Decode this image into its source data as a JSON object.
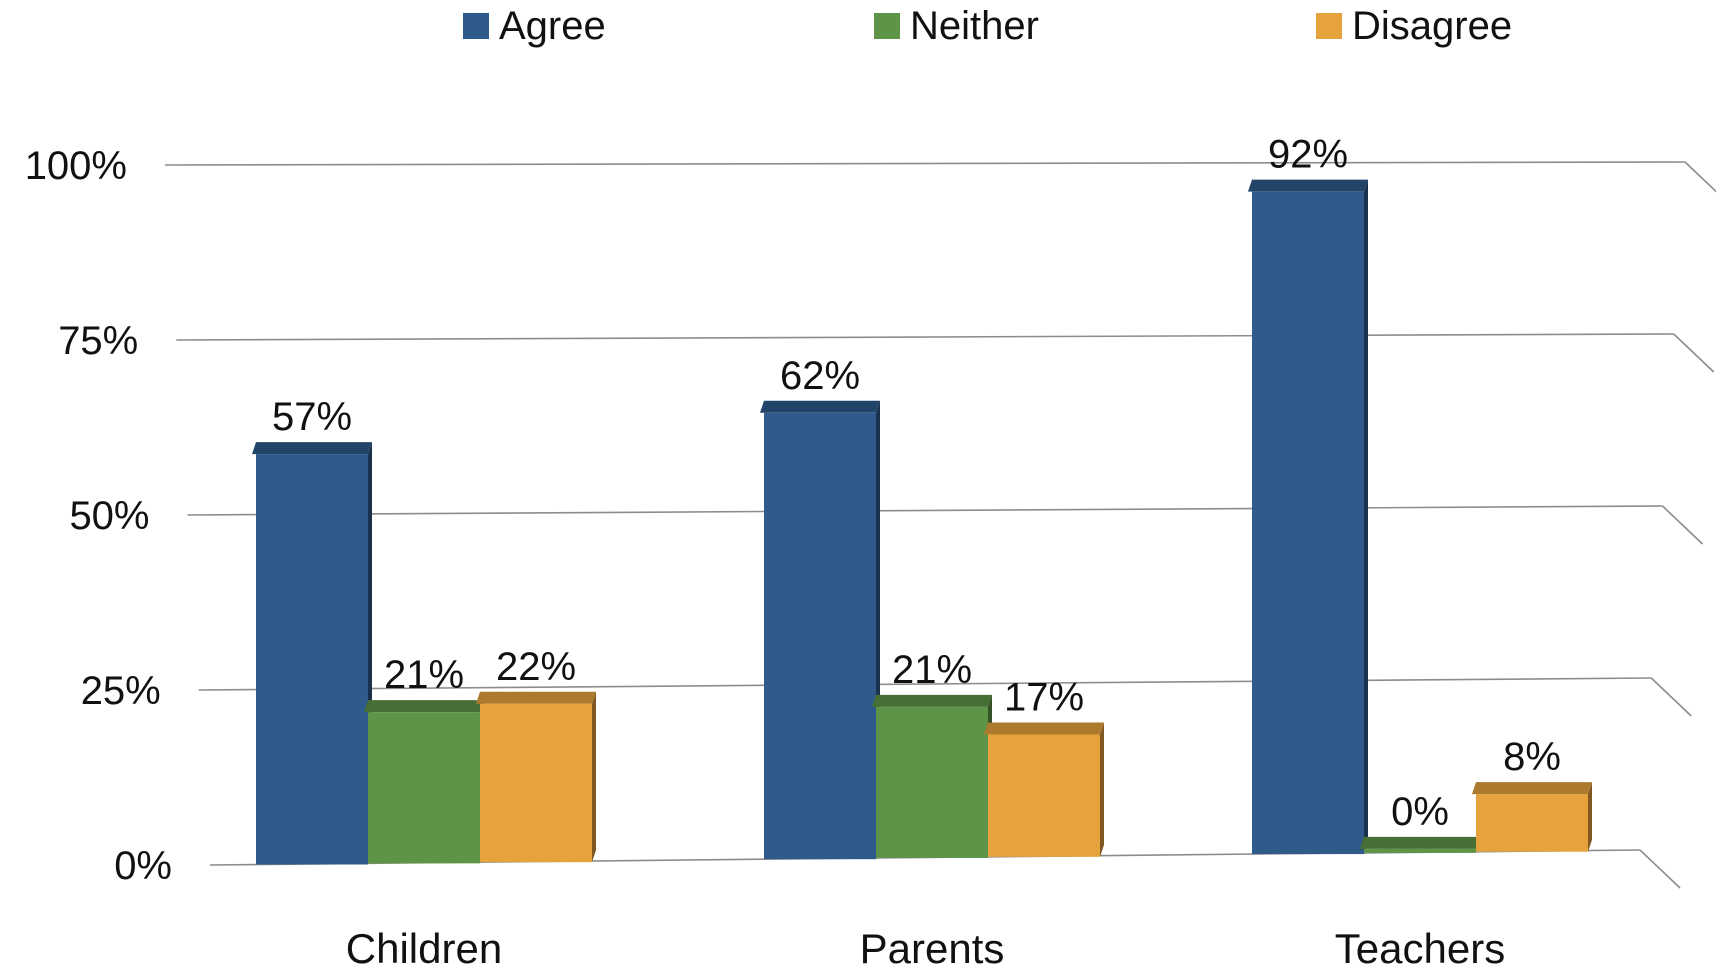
{
  "chart_data": {
    "type": "bar",
    "categories": [
      "Children",
      "Parents",
      "Teachers"
    ],
    "series": [
      {
        "name": "Agree",
        "values": [
          57,
          62,
          92
        ],
        "labels": [
          "57%",
          "62%",
          "92%"
        ],
        "color": "#2F5A8C"
      },
      {
        "name": "Neither",
        "values": [
          21,
          21,
          0
        ],
        "labels": [
          "21%",
          "21%",
          "0%"
        ],
        "color": "#5E9447"
      },
      {
        "name": "Disagree",
        "values": [
          22,
          17,
          8
        ],
        "labels": [
          "22%",
          "17%",
          "8%"
        ],
        "color": "#E6A23C"
      }
    ],
    "y_ticks": [
      "0%",
      "25%",
      "50%",
      "75%",
      "100%"
    ],
    "ylim": [
      0,
      100
    ],
    "legend_position": "top",
    "grid": true
  }
}
